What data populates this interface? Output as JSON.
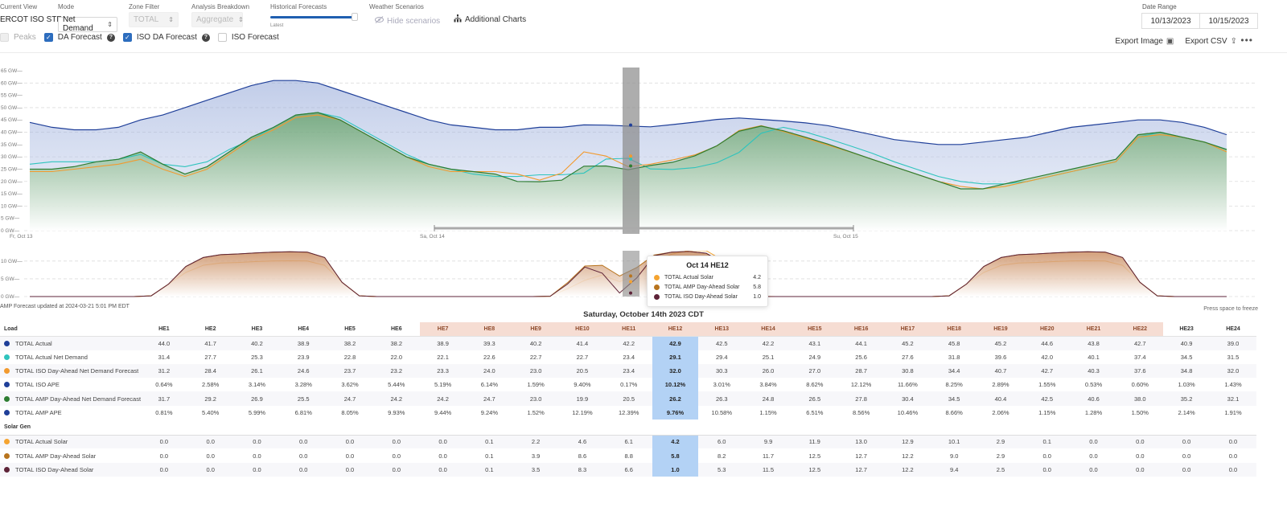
{
  "header": {
    "current_view_label": "Current View",
    "current_view_value": "ERCOT ISO STF",
    "mode_label": "Mode",
    "mode_value": "Net Demand",
    "zone_label": "Zone Filter",
    "zone_value": "TOTAL",
    "analysis_label": "Analysis Breakdown",
    "analysis_value": "Aggregate",
    "historical_label": "Historical Forecasts",
    "historical_sub": "Latest",
    "weather_label": "Weather Scenarios",
    "weather_button": "Hide scenarios",
    "additional_charts": "Additional Charts",
    "date_range_label": "Date Range",
    "date_start": "10/13/2023",
    "date_end": "10/15/2023",
    "export_image": "Export Image",
    "export_csv": "Export CSV",
    "more": "•••"
  },
  "checkboxes": [
    {
      "label": "Peaks",
      "checked": false,
      "disabled": true
    },
    {
      "label": "DA Forecast",
      "checked": true,
      "help": true
    },
    {
      "label": "ISO DA Forecast",
      "checked": true,
      "help": true
    },
    {
      "label": "ISO Forecast",
      "checked": false
    }
  ],
  "colors": {
    "total_actual": "#1f3f99",
    "actual_net_demand": "#2fc4bd",
    "iso_da_net_demand": "#f29a2e",
    "amp_da_net_demand": "#2e7d32",
    "actual_solar": "#f5a431",
    "amp_da_solar": "#b8741e",
    "iso_da_solar": "#5e2338",
    "highlight": "#b3d2f5",
    "peak_header": "#f6ddd3"
  },
  "chart_data": [
    {
      "type": "area",
      "title": "Net Demand",
      "ylabel": "GW",
      "ylim": [
        0,
        65
      ],
      "yticks": [
        "0 GW",
        "5 GW",
        "10 GW",
        "15 GW",
        "20 GW",
        "25 GW",
        "30 GW",
        "35 GW",
        "40 GW",
        "45 GW",
        "50 GW",
        "55 GW",
        "60 GW",
        "65 GW"
      ],
      "xticks": [
        "Fr, Oct 13",
        "Sa, Oct 14",
        "Su, Oct 15"
      ],
      "grid": true,
      "series": [
        {
          "name": "TOTAL Actual",
          "values": [
            44,
            42,
            41,
            41,
            42,
            45,
            47,
            50,
            53,
            56,
            59,
            61,
            61,
            60,
            57,
            54,
            51,
            48,
            45,
            43,
            42,
            41,
            41,
            42,
            42,
            43,
            42.9,
            42.5,
            42.2,
            43.1,
            44.1,
            45.2,
            45.8,
            45.2,
            44.6,
            43.8,
            42.7,
            40.9,
            39.0,
            37,
            36,
            35,
            35,
            36,
            37,
            38,
            40,
            42,
            43,
            44,
            45,
            45,
            44,
            42,
            39
          ]
        },
        {
          "name": "TOTAL Actual Net Demand",
          "values": [
            27,
            28,
            28,
            28,
            29,
            31,
            27,
            26,
            28,
            33,
            37,
            42,
            47,
            48,
            46,
            41,
            36,
            31,
            27,
            25,
            23,
            22,
            22,
            22.7,
            22.7,
            23.4,
            29.1,
            29.4,
            25.1,
            24.9,
            25.6,
            27.6,
            31.8,
            39.6,
            42,
            40.1,
            37.4,
            34.5,
            31.5,
            28,
            25,
            22,
            20,
            19,
            19,
            20,
            22,
            24,
            26,
            28,
            38,
            40,
            38,
            36,
            33
          ]
        },
        {
          "name": "TOTAL ISO Day-Ahead Net Demand Forecast",
          "values": [
            24,
            24,
            25,
            26,
            27,
            29,
            25,
            22,
            25,
            31,
            37,
            41,
            46,
            47,
            45,
            40,
            35,
            30,
            26,
            24,
            24,
            24,
            23,
            20.5,
            23.4,
            32,
            30.3,
            26,
            27,
            28.7,
            30.8,
            34.4,
            40.7,
            42.7,
            40.3,
            37.6,
            34.8,
            32,
            29,
            26,
            23,
            20,
            18,
            17,
            18,
            20,
            22,
            24,
            26,
            28,
            38,
            39,
            38,
            36,
            32
          ]
        },
        {
          "name": "TOTAL AMP Day-Ahead Net Demand Forecast",
          "values": [
            25,
            25,
            26,
            28,
            29,
            32,
            27,
            23,
            26,
            32,
            38,
            42,
            47,
            48,
            45,
            40,
            35,
            30,
            27,
            25,
            24,
            23,
            20,
            19.9,
            20.5,
            26.2,
            26.3,
            24.8,
            26.5,
            27.8,
            30.4,
            34.5,
            40.4,
            42.5,
            40.6,
            38,
            35.2,
            32.1,
            29,
            26,
            23,
            20,
            17,
            17,
            19,
            21,
            23,
            25,
            27,
            29,
            39,
            40,
            38,
            36,
            33
          ]
        }
      ]
    },
    {
      "type": "area",
      "title": "Solar Gen",
      "ylabel": "GW",
      "ylim": [
        0,
        12
      ],
      "yticks": [
        "0 GW",
        "5 GW",
        "10 GW"
      ],
      "series": [
        {
          "name": "TOTAL Actual Solar",
          "values": [
            0,
            0,
            0,
            0,
            0,
            0,
            0,
            0.1,
            2.2,
            4.6,
            6.1,
            4.2,
            6.0,
            9.9,
            11.9,
            13.0,
            12.9,
            10.1,
            2.9,
            0.1,
            0,
            0,
            0,
            0
          ]
        },
        {
          "name": "TOTAL AMP Day-Ahead Solar",
          "values": [
            0,
            0,
            0,
            0,
            0,
            0,
            0,
            0.1,
            3.9,
            8.6,
            8.8,
            5.8,
            8.2,
            11.7,
            12.5,
            12.7,
            12.2,
            9.0,
            2.9,
            0,
            0,
            0,
            0,
            0
          ]
        },
        {
          "name": "TOTAL ISO Day-Ahead Solar",
          "values": [
            0,
            0,
            0,
            0,
            0,
            0,
            0,
            0.1,
            3.5,
            8.3,
            6.6,
            1.0,
            5.3,
            11.5,
            12.5,
            12.7,
            12.2,
            9.4,
            2.5,
            0,
            0,
            0,
            0,
            0
          ]
        }
      ]
    }
  ],
  "chart_footer": {
    "updated_note": "AMP Forecast updated at 2024-03-21 5:01 PM EDT",
    "freeze_hint": "Press space to freeze"
  },
  "tooltip": {
    "title": "Oct 14 HE12",
    "rows": [
      {
        "name": "TOTAL Actual Solar",
        "value": "4.2"
      },
      {
        "name": "TOTAL AMP Day-Ahead Solar",
        "value": "5.8"
      },
      {
        "name": "TOTAL ISO Day-Ahead Solar",
        "value": "1.0"
      }
    ]
  },
  "table": {
    "day_title": "Saturday, October 14th 2023 CDT",
    "load_header": "Load",
    "solar_header": "Solar Gen",
    "hours": [
      "HE1",
      "HE2",
      "HE3",
      "HE4",
      "HE5",
      "HE6",
      "HE7",
      "HE8",
      "HE9",
      "HE10",
      "HE11",
      "HE12",
      "HE13",
      "HE14",
      "HE15",
      "HE16",
      "HE17",
      "HE18",
      "HE19",
      "HE20",
      "HE21",
      "HE22",
      "HE23",
      "HE24"
    ],
    "load_rows": [
      {
        "name": "TOTAL Actual",
        "values": [
          "44.0",
          "41.7",
          "40.2",
          "38.9",
          "38.2",
          "38.2",
          "38.9",
          "39.3",
          "40.2",
          "41.4",
          "42.2",
          "42.9",
          "42.5",
          "42.2",
          "43.1",
          "44.1",
          "45.2",
          "45.8",
          "45.2",
          "44.6",
          "43.8",
          "42.7",
          "40.9",
          "39.0"
        ]
      },
      {
        "name": "TOTAL Actual Net Demand",
        "values": [
          "31.4",
          "27.7",
          "25.3",
          "23.9",
          "22.8",
          "22.0",
          "22.1",
          "22.6",
          "22.7",
          "22.7",
          "23.4",
          "29.1",
          "29.4",
          "25.1",
          "24.9",
          "25.6",
          "27.6",
          "31.8",
          "39.6",
          "42.0",
          "40.1",
          "37.4",
          "34.5",
          "31.5"
        ]
      },
      {
        "name": "TOTAL ISO Day-Ahead Net Demand Forecast",
        "values": [
          "31.2",
          "28.4",
          "26.1",
          "24.6",
          "23.7",
          "23.2",
          "23.3",
          "24.0",
          "23.0",
          "20.5",
          "23.4",
          "32.0",
          "30.3",
          "26.0",
          "27.0",
          "28.7",
          "30.8",
          "34.4",
          "40.7",
          "42.7",
          "40.3",
          "37.6",
          "34.8",
          "32.0"
        ]
      },
      {
        "name": "TOTAL ISO APE",
        "values": [
          "0.64%",
          "2.58%",
          "3.14%",
          "3.28%",
          "3.62%",
          "5.44%",
          "5.19%",
          "6.14%",
          "1.59%",
          "9.40%",
          "0.17%",
          "10.12%",
          "3.01%",
          "3.84%",
          "8.62%",
          "12.12%",
          "11.66%",
          "8.25%",
          "2.89%",
          "1.55%",
          "0.53%",
          "0.60%",
          "1.03%",
          "1.43%"
        ]
      },
      {
        "name": "TOTAL AMP Day-Ahead Net Demand Forecast",
        "values": [
          "31.7",
          "29.2",
          "26.9",
          "25.5",
          "24.7",
          "24.2",
          "24.2",
          "24.7",
          "23.0",
          "19.9",
          "20.5",
          "26.2",
          "26.3",
          "24.8",
          "26.5",
          "27.8",
          "30.4",
          "34.5",
          "40.4",
          "42.5",
          "40.6",
          "38.0",
          "35.2",
          "32.1"
        ]
      },
      {
        "name": "TOTAL AMP APE",
        "values": [
          "0.81%",
          "5.40%",
          "5.99%",
          "6.81%",
          "8.05%",
          "9.93%",
          "9.44%",
          "9.24%",
          "1.52%",
          "12.19%",
          "12.39%",
          "9.76%",
          "10.58%",
          "1.15%",
          "6.51%",
          "8.56%",
          "10.46%",
          "8.66%",
          "2.06%",
          "1.15%",
          "1.28%",
          "1.50%",
          "2.14%",
          "1.91%"
        ]
      }
    ],
    "solar_rows": [
      {
        "name": "TOTAL Actual Solar",
        "values": [
          "0.0",
          "0.0",
          "0.0",
          "0.0",
          "0.0",
          "0.0",
          "0.0",
          "0.1",
          "2.2",
          "4.6",
          "6.1",
          "4.2",
          "6.0",
          "9.9",
          "11.9",
          "13.0",
          "12.9",
          "10.1",
          "2.9",
          "0.1",
          "0.0",
          "0.0",
          "0.0",
          "0.0"
        ]
      },
      {
        "name": "TOTAL AMP Day-Ahead Solar",
        "values": [
          "0.0",
          "0.0",
          "0.0",
          "0.0",
          "0.0",
          "0.0",
          "0.0",
          "0.1",
          "3.9",
          "8.6",
          "8.8",
          "5.8",
          "8.2",
          "11.7",
          "12.5",
          "12.7",
          "12.2",
          "9.0",
          "2.9",
          "0.0",
          "0.0",
          "0.0",
          "0.0",
          "0.0"
        ]
      },
      {
        "name": "TOTAL ISO Day-Ahead Solar",
        "values": [
          "0.0",
          "0.0",
          "0.0",
          "0.0",
          "0.0",
          "0.0",
          "0.0",
          "0.1",
          "3.5",
          "8.3",
          "6.6",
          "1.0",
          "5.3",
          "11.5",
          "12.5",
          "12.7",
          "12.2",
          "9.4",
          "2.5",
          "0.0",
          "0.0",
          "0.0",
          "0.0",
          "0.0"
        ]
      }
    ]
  }
}
